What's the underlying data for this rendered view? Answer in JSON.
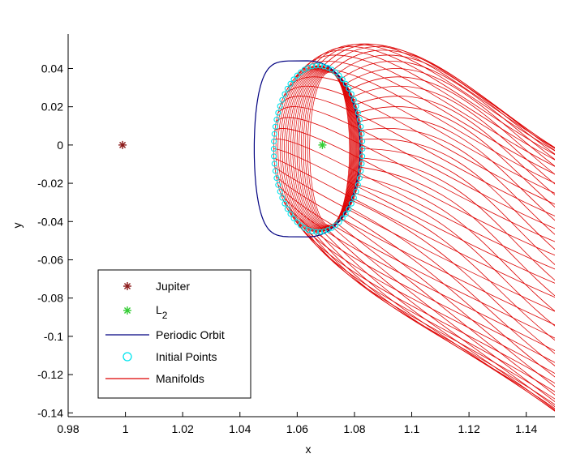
{
  "chart_data": {
    "type": "line",
    "title": "",
    "xlabel": "x",
    "ylabel": "y",
    "xlim": [
      0.98,
      1.15
    ],
    "ylim": [
      -0.142,
      0.058
    ],
    "xticks": [
      0.98,
      1,
      1.02,
      1.04,
      1.06,
      1.08,
      1.1,
      1.12,
      1.14
    ],
    "xtick_labels": [
      "0.98",
      "1",
      "1.02",
      "1.04",
      "1.06",
      "1.08",
      "1.1",
      "1.12",
      "1.14"
    ],
    "yticks": [
      0.04,
      0.02,
      0,
      -0.02,
      -0.04,
      -0.06,
      -0.08,
      -0.1,
      -0.12,
      -0.14
    ],
    "ytick_labels": [
      "0.04",
      "0.02",
      "0",
      "-0.02",
      "-0.04",
      "-0.06",
      "-0.08",
      "-0.1",
      "-0.12",
      "-0.14"
    ],
    "grid": false,
    "legend_position": "bottom-left",
    "series": [
      {
        "name": "Jupiter",
        "kind": "marker",
        "marker": "asterisk",
        "color": "#8b1a1a",
        "x": [
          0.999
        ],
        "y": [
          0.0
        ]
      },
      {
        "name": "L",
        "name_subscript": "2",
        "kind": "marker",
        "marker": "asterisk",
        "color": "#33cc33",
        "x": [
          1.0688
        ],
        "y": [
          0.0
        ]
      },
      {
        "name": "Periodic Orbit",
        "kind": "line",
        "color": "#000080",
        "center": [
          1.0635,
          -0.002
        ],
        "x_radius": 0.0185,
        "y_radius": 0.046
      },
      {
        "name": "Initial Points",
        "kind": "marker",
        "marker": "circle",
        "color": "#00e5ee",
        "center": [
          1.0673,
          -0.002
        ],
        "x_radius": 0.0155,
        "y_radius": 0.0435
      },
      {
        "name": "Manifolds",
        "kind": "line",
        "color": "#dd0000",
        "tube_top_end": [
          1.15,
          0.0
        ],
        "tube_bottom_end": [
          1.12,
          -0.142
        ]
      }
    ]
  }
}
